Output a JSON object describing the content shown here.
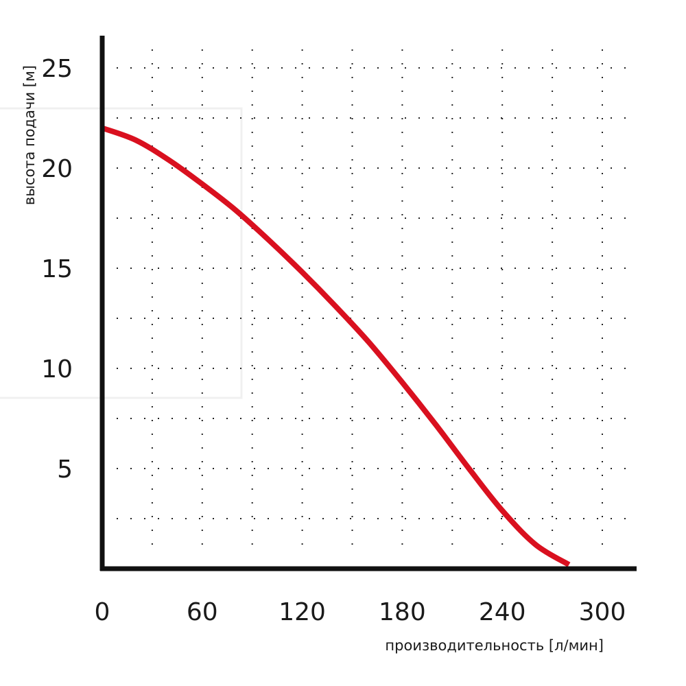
{
  "chart_data": {
    "type": "line",
    "xlabel": "производительность [л/мин]",
    "ylabel": "высота подачи [м]",
    "xlim": [
      0,
      320
    ],
    "ylim": [
      0,
      26
    ],
    "x_ticks": [
      "0",
      "60",
      "120",
      "180",
      "240",
      "300"
    ],
    "y_ticks": [
      "5",
      "10",
      "15",
      "20",
      "25"
    ],
    "grid": true,
    "series": [
      {
        "color": "#d9101f",
        "points": [
          [
            0,
            22.0
          ],
          [
            20,
            21.4
          ],
          [
            40,
            20.4
          ],
          [
            60,
            19.2
          ],
          [
            80,
            17.9
          ],
          [
            100,
            16.4
          ],
          [
            120,
            14.8
          ],
          [
            140,
            13.1
          ],
          [
            160,
            11.3
          ],
          [
            180,
            9.3
          ],
          [
            200,
            7.2
          ],
          [
            220,
            5.0
          ],
          [
            240,
            2.9
          ],
          [
            260,
            1.2
          ],
          [
            280,
            0.2
          ]
        ]
      }
    ]
  }
}
